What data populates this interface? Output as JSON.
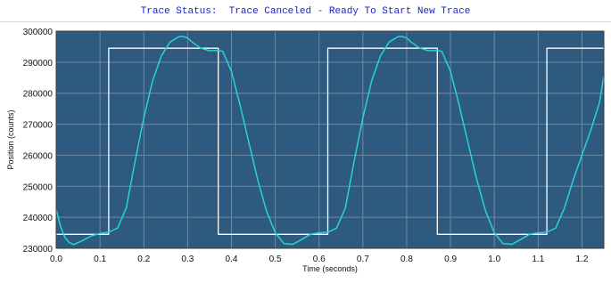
{
  "status": {
    "text": "Trace Status:  Trace Canceled - Ready To Start New Trace"
  },
  "colors": {
    "plot_background": "#2d5a7e",
    "grid": "#6f8aa2",
    "command": "#ffffff",
    "actual": "#27d3d6",
    "status_text": "#1a22c8"
  },
  "chart_data": {
    "type": "line",
    "title": "",
    "xlabel": "Time (seconds)",
    "ylabel": "Position (counts)",
    "xlim": [
      0.0,
      1.25
    ],
    "ylim": [
      230000,
      300000
    ],
    "x_ticks": [
      "0.0",
      "0.1",
      "0.2",
      "0.3",
      "0.4",
      "0.5",
      "0.6",
      "0.7",
      "0.8",
      "0.9",
      "1.0",
      "1.1",
      "1.2"
    ],
    "y_ticks": [
      "230000",
      "240000",
      "250000",
      "260000",
      "270000",
      "280000",
      "290000",
      "300000"
    ],
    "grid": true,
    "legend": "none",
    "series": [
      {
        "role": "command",
        "x": [
          0.0,
          0.12,
          0.12,
          0.37,
          0.37,
          0.62,
          0.62,
          0.87,
          0.87,
          1.12,
          1.12,
          1.25
        ],
        "y": [
          234500,
          234500,
          294500,
          294500,
          234500,
          234500,
          294500,
          294500,
          234500,
          234500,
          294500,
          294500
        ]
      },
      {
        "role": "actual",
        "x": [
          0.0,
          0.01,
          0.02,
          0.03,
          0.04,
          0.06,
          0.08,
          0.1,
          0.12,
          0.14,
          0.16,
          0.18,
          0.2,
          0.22,
          0.24,
          0.26,
          0.28,
          0.29,
          0.3,
          0.31,
          0.33,
          0.35,
          0.37,
          0.38,
          0.4,
          0.42,
          0.44,
          0.46,
          0.48,
          0.5,
          0.52,
          0.54,
          0.56,
          0.58,
          0.6,
          0.62,
          0.64,
          0.66,
          0.68,
          0.7,
          0.72,
          0.74,
          0.76,
          0.78,
          0.79,
          0.8,
          0.81,
          0.83,
          0.85,
          0.87,
          0.88,
          0.9,
          0.92,
          0.94,
          0.96,
          0.98,
          1.0,
          1.02,
          1.04,
          1.06,
          1.08,
          1.1,
          1.12,
          1.14,
          1.16,
          1.18,
          1.2,
          1.22,
          1.24,
          1.25
        ],
        "y": [
          242500,
          237000,
          233500,
          231800,
          231200,
          232500,
          234000,
          234800,
          235200,
          236500,
          243000,
          258000,
          272000,
          284000,
          292000,
          296500,
          298200,
          298300,
          297800,
          296500,
          294500,
          293700,
          293800,
          293500,
          287000,
          276000,
          264000,
          252000,
          242000,
          235000,
          231500,
          231300,
          232800,
          234500,
          235000,
          235200,
          236500,
          243000,
          258000,
          272000,
          284000,
          292000,
          296500,
          298200,
          298300,
          297800,
          296500,
          294500,
          293700,
          293800,
          293500,
          287000,
          276000,
          264000,
          252000,
          242000,
          235000,
          231500,
          231300,
          232800,
          234500,
          235000,
          235200,
          236500,
          243000,
          252000,
          260000,
          268000,
          277000,
          285500
        ]
      }
    ]
  }
}
